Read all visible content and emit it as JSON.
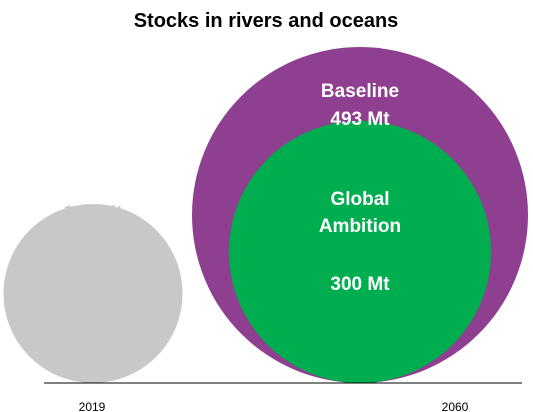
{
  "chart_data": {
    "type": "bubble",
    "title": "Stocks in rivers and oceans",
    "unit": "Mt",
    "colors": {
      "baseline_2019": "#c8c8c8",
      "baseline_2060": "#8e3f8f",
      "global_ambition": "#00ae4f",
      "label_2019": "#c8c8c8",
      "label_light": "#ffffff"
    },
    "bubbles": [
      {
        "year": "2019",
        "scenario": "",
        "value": 140,
        "value_label": "140 Mt"
      },
      {
        "year": "2060",
        "scenario": "Baseline",
        "value": 493,
        "value_label": "493 Mt"
      },
      {
        "year": "2060",
        "scenario": "Global\nAmbition",
        "value": 300,
        "value_label": "300 Mt"
      }
    ],
    "x_labels": [
      "2019",
      "2060"
    ]
  }
}
